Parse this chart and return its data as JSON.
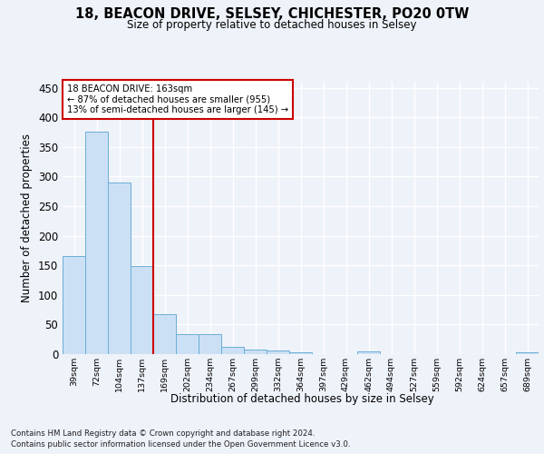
{
  "title_line1": "18, BEACON DRIVE, SELSEY, CHICHESTER, PO20 0TW",
  "title_line2": "Size of property relative to detached houses in Selsey",
  "xlabel": "Distribution of detached houses by size in Selsey",
  "ylabel": "Number of detached properties",
  "footer_line1": "Contains HM Land Registry data © Crown copyright and database right 2024.",
  "footer_line2": "Contains public sector information licensed under the Open Government Licence v3.0.",
  "categories": [
    "39sqm",
    "72sqm",
    "104sqm",
    "137sqm",
    "169sqm",
    "202sqm",
    "234sqm",
    "267sqm",
    "299sqm",
    "332sqm",
    "364sqm",
    "397sqm",
    "429sqm",
    "462sqm",
    "494sqm",
    "527sqm",
    "559sqm",
    "592sqm",
    "624sqm",
    "657sqm",
    "689sqm"
  ],
  "values": [
    165,
    375,
    290,
    148,
    68,
    33,
    33,
    13,
    7,
    6,
    3,
    0,
    0,
    5,
    0,
    0,
    0,
    0,
    0,
    0,
    3
  ],
  "bar_color": "#cce0f5",
  "bar_edge_color": "#6baed6",
  "marker_color": "#cc0000",
  "annotation_text_line1": "18 BEACON DRIVE: 163sqm",
  "annotation_text_line2": "← 87% of detached houses are smaller (955)",
  "annotation_text_line3": "13% of semi-detached houses are larger (145) →",
  "annotation_box_color": "#ffffff",
  "annotation_box_edge_color": "#cc0000",
  "ylim": [
    0,
    460
  ],
  "yticks": [
    0,
    50,
    100,
    150,
    200,
    250,
    300,
    350,
    400,
    450
  ],
  "background_color": "#eef2f9",
  "grid_color": "#ffffff"
}
